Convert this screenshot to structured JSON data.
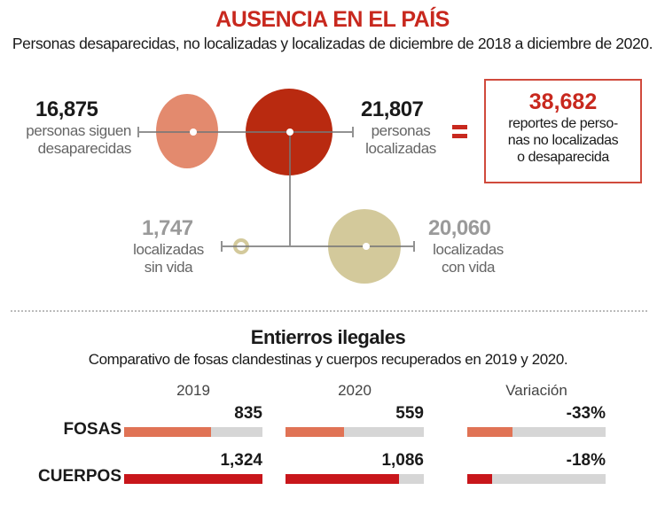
{
  "header": {
    "title": "AUSENCIA EN EL PAÍS",
    "subtitle": "Personas desaparecidas, no localizadas y localizadas de diciembre de 2018 a diciembre de 2020."
  },
  "colors": {
    "accent": "#c8281e",
    "light_red": "#e38a6e",
    "dark_red": "#b92a10",
    "tan": "#d3c99b",
    "bar_fosas": "#e07355",
    "bar_cuerpos": "#c8161b",
    "bar_bg": "#d6d6d6"
  },
  "chart_data": [
    {
      "type": "bubble",
      "items": [
        {
          "value": "16,875",
          "label_1": "personas siguen",
          "label_2": "desaparecidas"
        },
        {
          "value": "21,807",
          "label_1": "personas",
          "label_2": "localizadas"
        },
        {
          "value": "1,747",
          "label_1": "localizadas",
          "label_2": "sin vida"
        },
        {
          "value": "20,060",
          "label_1": "localizadas",
          "label_2": "con vida"
        }
      ],
      "equals": "=",
      "total": {
        "value": "38,682",
        "label": "reportes de perso-nas no localizadas o desaparecida",
        "lines": [
          "reportes de perso-",
          "nas no localizadas",
          "o desaparecida"
        ]
      }
    },
    {
      "type": "bar",
      "title": "Entierros ilegales",
      "subtitle": "Comparativo de fosas clandestinas y cuerpos recuperados en 2019 y 2020.",
      "columns": [
        "2019",
        "2020",
        "Variación"
      ],
      "rows": [
        {
          "name": "FOSAS",
          "values": [
            835,
            559
          ],
          "labels": [
            "835",
            "559"
          ],
          "variation": -33,
          "variation_label": "-33%"
        },
        {
          "name": "CUERPOS",
          "values": [
            1324,
            1086
          ],
          "labels": [
            "1,324",
            "1,086"
          ],
          "variation": -18,
          "variation_label": "-18%"
        }
      ],
      "value_max": 1324
    }
  ]
}
